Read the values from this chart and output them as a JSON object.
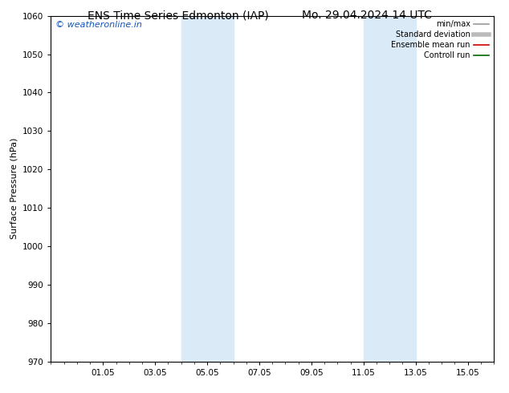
{
  "title_left": "ENS Time Series Edmonton (IAP)",
  "title_right": "Mo. 29.04.2024 14 UTC",
  "ylabel": "Surface Pressure (hPa)",
  "ylim": [
    970,
    1060
  ],
  "yticks": [
    970,
    980,
    990,
    1000,
    1010,
    1020,
    1030,
    1040,
    1050,
    1060
  ],
  "xtick_labels": [
    "01.05",
    "03.05",
    "05.05",
    "07.05",
    "09.05",
    "11.05",
    "13.05",
    "15.05"
  ],
  "xtick_positions": [
    2,
    4,
    6,
    8,
    10,
    12,
    14,
    16
  ],
  "xlim": [
    0,
    17
  ],
  "shaded_bands": [
    {
      "x_start": 5,
      "x_end": 7,
      "color": "#daeaf7"
    },
    {
      "x_start": 12,
      "x_end": 14,
      "color": "#daeaf7"
    }
  ],
  "background_color": "#ffffff",
  "plot_bg_color": "#ffffff",
  "watermark_text": "© weatheronline.in",
  "watermark_color": "#1155bb",
  "legend_items": [
    {
      "label": "min/max",
      "color": "#999999",
      "lw": 1.2,
      "ls": "-"
    },
    {
      "label": "Standard deviation",
      "color": "#bbbbbb",
      "lw": 4,
      "ls": "-"
    },
    {
      "label": "Ensemble mean run",
      "color": "#cc0000",
      "lw": 1.2,
      "ls": "-"
    },
    {
      "label": "Controll run",
      "color": "#006600",
      "lw": 1.2,
      "ls": "-"
    }
  ],
  "title_fontsize": 10,
  "axis_label_fontsize": 8,
  "tick_fontsize": 7.5,
  "legend_fontsize": 7,
  "watermark_fontsize": 8
}
